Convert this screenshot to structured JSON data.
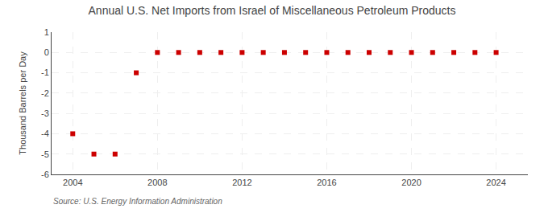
{
  "chart_data": {
    "type": "scatter",
    "title": "Annual U.S. Net Imports from Israel of Miscellaneous Petroleum Products",
    "ylabel": "Thousand Barrels per Day",
    "annotations": [
      "Source: U.S. Energy Information Administration"
    ],
    "x": [
      2004,
      2005,
      2006,
      2007,
      2008,
      2009,
      2010,
      2011,
      2012,
      2013,
      2014,
      2015,
      2016,
      2017,
      2018,
      2019,
      2020,
      2021,
      2022,
      2023,
      2024
    ],
    "values": [
      -4.0,
      -5.0,
      -5.0,
      -1.0,
      0.0,
      0.0,
      0.0,
      0.0,
      0.0,
      0.0,
      0.0,
      0.0,
      0.0,
      0.0,
      0.0,
      0.0,
      0.0,
      0.0,
      0.0,
      0.0,
      0.0
    ],
    "color": "#cc0000",
    "marker": "square",
    "xlim": [
      2003.0,
      2025.5
    ],
    "xticks": [
      2004,
      2008,
      2012,
      2016,
      2020,
      2024
    ],
    "ylim": [
      -6,
      1
    ],
    "yticks": [
      -6,
      -5,
      -4,
      -3,
      -2,
      -1,
      0,
      1
    ],
    "grid": true
  }
}
